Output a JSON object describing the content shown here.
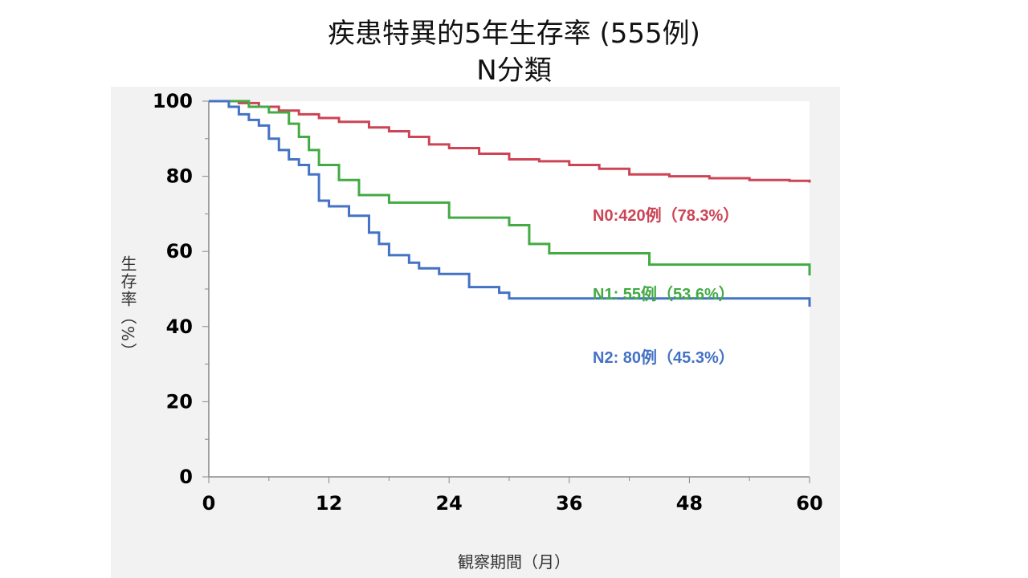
{
  "title_line1": "疾患特異的5年生存率 (555例)",
  "title_line2": "N分類",
  "chart_data": {
    "type": "line",
    "step": true,
    "title": "疾患特異的5年生存率 (555例) N分類",
    "xlabel": "観察期間（月）",
    "ylabel": "生存率（%）",
    "xlim": [
      0,
      60
    ],
    "ylim": [
      0,
      100
    ],
    "x_ticks": [
      0,
      12,
      24,
      36,
      48,
      60
    ],
    "y_ticks": [
      0,
      20,
      40,
      60,
      80,
      100
    ],
    "grid": false,
    "series": [
      {
        "name": "N0:420例（78.3%）",
        "color": "#cc4455",
        "x": [
          0,
          3,
          5,
          7,
          9,
          11,
          13,
          16,
          18,
          20,
          22,
          24,
          27,
          30,
          33,
          36,
          39,
          42,
          46,
          50,
          54,
          58,
          60
        ],
        "y": [
          100,
          99.5,
          98.5,
          97.5,
          96.5,
          95.5,
          94.5,
          93,
          92,
          90.5,
          88.5,
          87.5,
          86,
          84.5,
          84,
          83,
          82,
          80.5,
          80,
          79.5,
          79,
          78.8,
          78.3
        ]
      },
      {
        "name": "N1: 55例（53.6%）",
        "color": "#44aa44",
        "x": [
          0,
          4,
          6,
          8,
          9,
          10,
          11,
          13,
          15,
          18,
          24,
          30,
          32,
          34,
          44,
          60
        ],
        "y": [
          100,
          98.5,
          97,
          94,
          90.5,
          87,
          83,
          79,
          75,
          73,
          69,
          67,
          62,
          59.5,
          56.5,
          53.6
        ]
      },
      {
        "name": "N2: 80例（45.3%）",
        "color": "#4472c4",
        "x": [
          0,
          2,
          3,
          4,
          5,
          6,
          7,
          8,
          9,
          10,
          11,
          12,
          14,
          16,
          17,
          18,
          20,
          21,
          23,
          26,
          29,
          30,
          60
        ],
        "y": [
          100,
          98.5,
          96.5,
          95,
          93.5,
          90,
          87,
          84.5,
          83,
          80.5,
          73.5,
          72,
          69.5,
          65,
          62,
          59,
          57,
          55.5,
          54,
          50.5,
          49,
          47.5,
          45.3
        ]
      }
    ]
  }
}
